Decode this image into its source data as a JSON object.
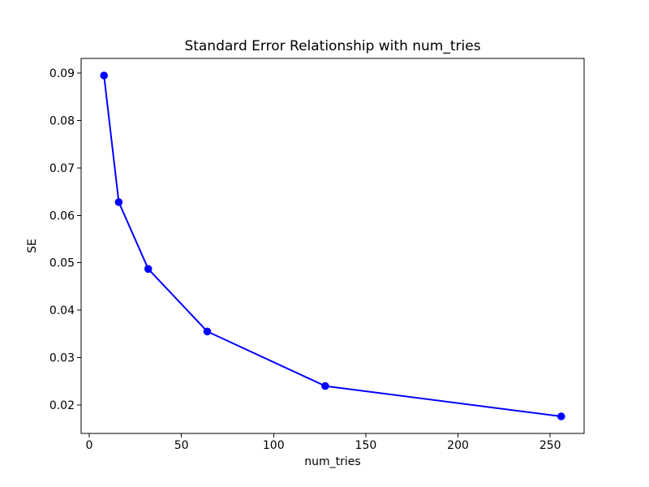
{
  "chart_data": {
    "type": "line",
    "title": "Standard Error Relationship with num_tries",
    "xlabel": "num_tries",
    "ylabel": "SE",
    "x": [
      8,
      16,
      32,
      64,
      128,
      256
    ],
    "y": [
      0.0895,
      0.0628,
      0.0487,
      0.0355,
      0.024,
      0.0176
    ],
    "xlim": [
      -4.4,
      268.4
    ],
    "ylim": [
      0.014,
      0.0931
    ],
    "x_ticks": [
      0,
      50,
      100,
      150,
      200,
      250
    ],
    "y_ticks": [
      0.02,
      0.03,
      0.04,
      0.05,
      0.06,
      0.07,
      0.08,
      0.09
    ],
    "line_color": "#0000ff",
    "marker_color": "#0000ff",
    "axis_color": "#000000",
    "grid": false,
    "legend": null
  }
}
